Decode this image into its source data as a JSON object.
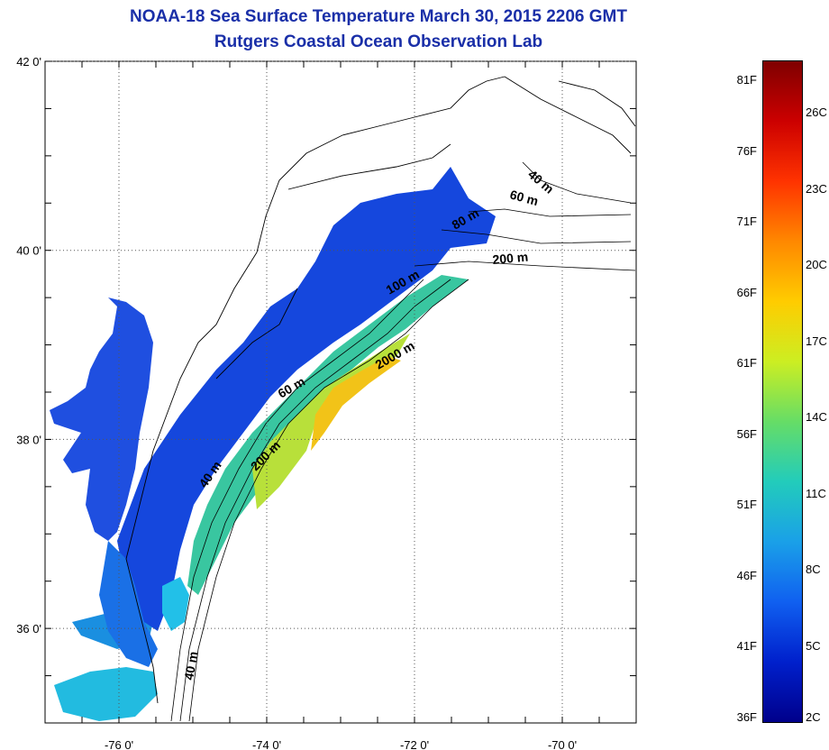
{
  "title": {
    "line1": "NOAA-18 Sea Surface Temperature March 30, 2015 2206 GMT",
    "line2": "Rutgers Coastal Ocean Observation Lab"
  },
  "axes": {
    "lon_labels": [
      "-76 0'",
      "-74 0'",
      "-72 0'",
      "-70 0'"
    ],
    "lat_labels": [
      "42 0'",
      "40 0'",
      "38 0'",
      "36 0'"
    ],
    "lon_values": [
      -76,
      -74,
      -72,
      -70
    ],
    "lat_values": [
      42,
      40,
      38,
      36
    ],
    "lon_range": [
      -77,
      -69
    ],
    "lat_range": [
      35,
      42
    ]
  },
  "contour_labels": [
    "40 m",
    "60 m",
    "80 m",
    "200 m",
    "100 m",
    "2000 m",
    "60 m",
    "200 m",
    "40 m",
    "40 m"
  ],
  "colorbar": {
    "fahrenheit_labels": [
      "81F",
      "76F",
      "71F",
      "66F",
      "61F",
      "56F",
      "51F",
      "46F",
      "41F",
      "36F"
    ],
    "celsius_labels": [
      "26C",
      "23C",
      "20C",
      "17C",
      "14C",
      "11C",
      "8C",
      "5C",
      "2C"
    ],
    "colors": [
      "#7f0000",
      "#cc0000",
      "#ff3300",
      "#ff8800",
      "#ffcc00",
      "#ccee22",
      "#66dd66",
      "#22ccbb",
      "#1aa0e8",
      "#1060f0",
      "#0020cc",
      "#00008b"
    ]
  },
  "colors": {
    "title": "#1a2fa8",
    "land": "#ffffff",
    "coastline": "#000000",
    "grid": "#555555"
  }
}
